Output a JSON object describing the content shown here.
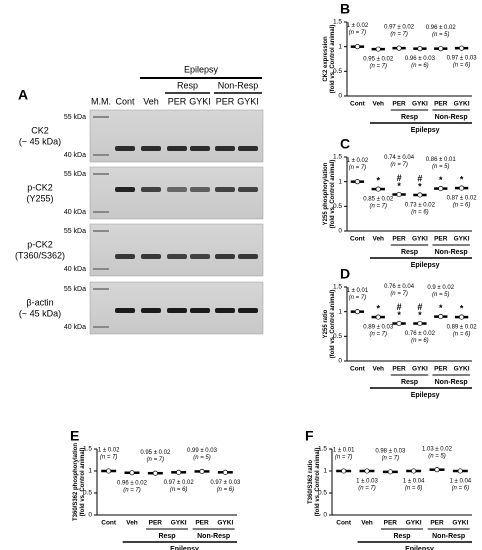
{
  "blot": {
    "panel": "A",
    "marker_lane": "M.M.",
    "lanes": [
      "Cont",
      "Veh",
      "PER",
      "GYKI",
      "PER",
      "GYKI"
    ],
    "group_labels": [
      "Resp",
      "Non-Resp"
    ],
    "super_label": "Epilepsy",
    "rows": [
      {
        "label": [
          "CK2",
          "(~ 45 kDa)"
        ],
        "kda": [
          "55 kDa",
          "40 kDa"
        ]
      },
      {
        "label": [
          "p-CK2",
          "(Y255)"
        ],
        "kda": [
          "55 kDa",
          "40 kDa"
        ]
      },
      {
        "label": [
          "p-CK2",
          "(T360/S362)"
        ],
        "kda": [
          "55 kDa",
          "40 kDa"
        ]
      },
      {
        "label": [
          "β-actin",
          "(~ 45 kDa)"
        ],
        "kda": [
          "55 kDa",
          "40 kDa"
        ]
      }
    ]
  },
  "chart_data": [
    {
      "type": "dot",
      "panel": "B",
      "ylabel": [
        "CK2 expression",
        "(fold vs. Control animal)"
      ],
      "categories": [
        "Cont",
        "Veh",
        "PER",
        "GYKI",
        "PER",
        "GYKI"
      ],
      "group_labels": [
        "Resp",
        "Non-Resp"
      ],
      "super_label": "Epilepsy",
      "values": [
        1,
        0.95,
        0.97,
        0.96,
        0.96,
        0.97
      ],
      "value_labels": [
        "1 ± 0.02",
        "0.95 ± 0.02",
        "0.97 ± 0.02",
        "0.96 ± 0.03",
        "0.96 ± 0.02",
        "0.97 ± 0.03"
      ],
      "n_labels": [
        "(n = 7)",
        "(n = 7)",
        "(n = 7)",
        "(n = 6)",
        "(n = 5)",
        "(n = 6)"
      ],
      "markers": [
        [],
        [],
        [],
        [],
        [],
        []
      ],
      "ylim": [
        0,
        1.5
      ],
      "yticks": [
        0,
        0.5,
        1,
        1.5
      ]
    },
    {
      "type": "dot",
      "panel": "C",
      "ylabel": [
        "Y255 phosphorylation",
        "(fold vs. Control animal)"
      ],
      "categories": [
        "Cont",
        "Veh",
        "PER",
        "GYKI",
        "PER",
        "GYKI"
      ],
      "group_labels": [
        "Resp",
        "Non-Resp"
      ],
      "super_label": "Epilepsy",
      "values": [
        1,
        0.85,
        0.74,
        0.73,
        0.86,
        0.87
      ],
      "value_labels": [
        "1 ± 0.02",
        "0.85 ± 0.02",
        "0.74 ± 0.04",
        "0.73 ± 0.02",
        "0.86 ± 0.01",
        "0.87 ± 0.02"
      ],
      "n_labels": [
        "(n = 7)",
        "(n = 7)",
        "(n = 7)",
        "(n = 6)",
        "(n = 5)",
        "(n = 6)"
      ],
      "markers": [
        [],
        [
          "*"
        ],
        [
          "#",
          "*"
        ],
        [
          "#",
          "*"
        ],
        [
          "*"
        ],
        [
          "*"
        ]
      ],
      "ylim": [
        0,
        1.5
      ],
      "yticks": [
        0,
        0.5,
        1,
        1.5
      ]
    },
    {
      "type": "dot",
      "panel": "D",
      "ylabel": [
        "Y255 ratio",
        "(fold vs. Control animal)"
      ],
      "categories": [
        "Cont",
        "Veh",
        "PER",
        "GYKI",
        "PER",
        "GYKI"
      ],
      "group_labels": [
        "Resp",
        "Non-Resp"
      ],
      "super_label": "Epilepsy",
      "values": [
        1,
        0.89,
        0.76,
        0.76,
        0.9,
        0.89
      ],
      "value_labels": [
        "1 ± 0.01",
        "0.89 ± 0.03",
        "0.76 ± 0.04",
        "0.76 ± 0.02",
        "0.9 ± 0.02",
        "0.89 ± 0.02"
      ],
      "n_labels": [
        "(n = 7)",
        "(n = 7)",
        "(n = 7)",
        "(n = 6)",
        "(n = 5)",
        "(n = 6)"
      ],
      "markers": [
        [],
        [
          "*"
        ],
        [
          "#",
          "*"
        ],
        [
          "#",
          "*"
        ],
        [
          "*"
        ],
        [
          "*"
        ]
      ],
      "ylim": [
        0,
        1.5
      ],
      "yticks": [
        0,
        0.5,
        1,
        1.5
      ]
    },
    {
      "type": "dot",
      "panel": "E",
      "ylabel": [
        "T360/S362 phosphorylation",
        "(fold vs. Control animal)"
      ],
      "categories": [
        "Cont",
        "Veh",
        "PER",
        "GYKI",
        "PER",
        "GYKI"
      ],
      "group_labels": [
        "Resp",
        "Non-Resp"
      ],
      "super_label": "Epilepsy",
      "values": [
        1,
        0.96,
        0.95,
        0.97,
        0.99,
        0.97
      ],
      "value_labels": [
        "1 ± 0.02",
        "0.96 ± 0.02",
        "0.95 ± 0.02",
        "0.97 ± 0.02",
        "0.99 ± 0.03",
        "0.97 ± 0.03"
      ],
      "n_labels": [
        "(n = 7)",
        "(n = 7)",
        "(n = 7)",
        "(n = 6)",
        "(n = 5)",
        "(n = 6)"
      ],
      "markers": [
        [],
        [],
        [],
        [],
        [],
        []
      ],
      "ylim": [
        0,
        1.5
      ],
      "yticks": [
        0,
        0.5,
        1,
        1.5
      ]
    },
    {
      "type": "dot",
      "panel": "F",
      "ylabel": [
        "T360/S362 ratio",
        "(fold vs. Control animal)"
      ],
      "categories": [
        "Cont",
        "Veh",
        "PER",
        "GYKI",
        "PER",
        "GYKI"
      ],
      "group_labels": [
        "Resp",
        "Non-Resp"
      ],
      "super_label": "Epilepsy",
      "values": [
        1,
        1,
        0.98,
        1,
        1.03,
        1
      ],
      "value_labels": [
        "1 ± 0.01",
        "1 ± 0.03",
        "0.98 ± 0.03",
        "1 ± 0.04",
        "1.03 ± 0.02",
        "1 ± 0.04"
      ],
      "n_labels": [
        "(n = 7)",
        "(n = 7)",
        "(n = 7)",
        "(n = 6)",
        "(n = 5)",
        "(n = 6)"
      ],
      "markers": [
        [],
        [],
        [],
        [],
        [],
        []
      ],
      "ylim": [
        0,
        1.5
      ],
      "yticks": [
        0,
        0.5,
        1,
        1.5
      ]
    }
  ]
}
